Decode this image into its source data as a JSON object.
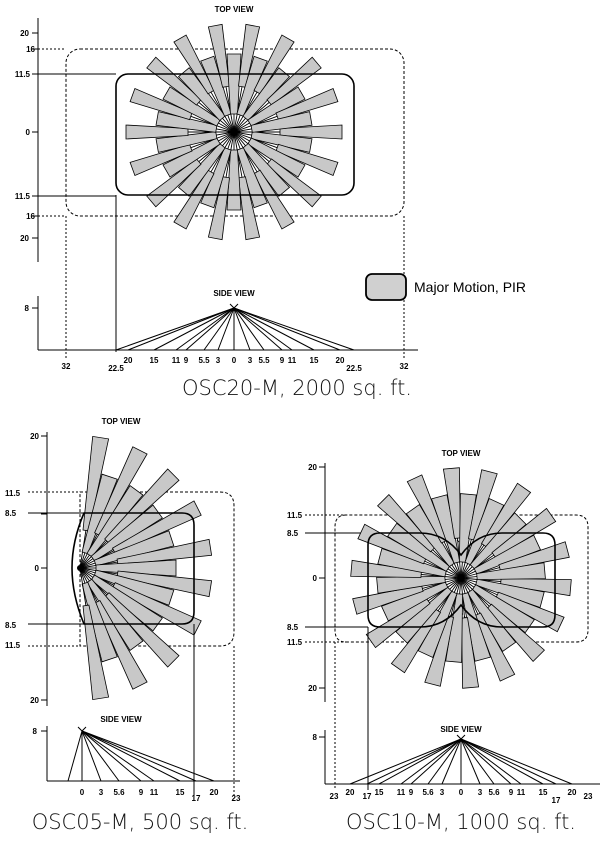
{
  "legend": {
    "label": "Major Motion, PIR",
    "swatch_color": "#d0d0d0"
  },
  "colors": {
    "petal_fill": "#c8c8c8",
    "stroke": "#000000",
    "background": "#ffffff"
  },
  "diagrams": [
    {
      "id": "osc20",
      "caption": "OSC20-M, 2000 sq. ft.",
      "top_title": "TOP VIEW",
      "side_title": "SIDE VIEW",
      "top_y_ticks": [
        "20",
        "16",
        "11.5",
        "0",
        "11.5",
        "16",
        "20"
      ],
      "side_y_tick": "8",
      "x_ticks": [
        "32",
        "22.5",
        "20",
        "15",
        "11",
        "9",
        "5.5",
        "3",
        "0",
        "3",
        "5.5",
        "9",
        "11",
        "15",
        "20",
        "22.5",
        "32"
      ],
      "coverage": {
        "major_motion_ft": 22.5,
        "minor_motion_ft": 32
      }
    },
    {
      "id": "osc05",
      "caption": "OSC05-M, 500 sq. ft.",
      "top_title": "TOP VIEW",
      "side_title": "SIDE VIEW",
      "top_y_ticks": [
        "20",
        "11.5",
        "8.5",
        "0",
        "8.5",
        "11.5",
        "20"
      ],
      "side_y_tick": "8",
      "x_ticks": [
        "0",
        "3",
        "5.6",
        "9",
        "11",
        "15",
        "17",
        "20",
        "23"
      ],
      "coverage": {
        "major_motion_ft": 17,
        "minor_motion_ft": 23
      }
    },
    {
      "id": "osc10",
      "caption": "OSC10-M, 1000 sq. ft.",
      "top_title": "TOP VIEW",
      "side_title": "SIDE VIEW",
      "top_y_ticks": [
        "20",
        "11.5",
        "8.5",
        "0",
        "8.5",
        "11.5",
        "20"
      ],
      "side_y_tick": "8",
      "x_ticks": [
        "23",
        "20",
        "17",
        "15",
        "11",
        "9",
        "5.6",
        "3",
        "0",
        "3",
        "5.6",
        "9",
        "11",
        "15",
        "17",
        "20",
        "23"
      ],
      "coverage": {
        "major_motion_ft": 17,
        "minor_motion_ft": 23
      }
    }
  ]
}
